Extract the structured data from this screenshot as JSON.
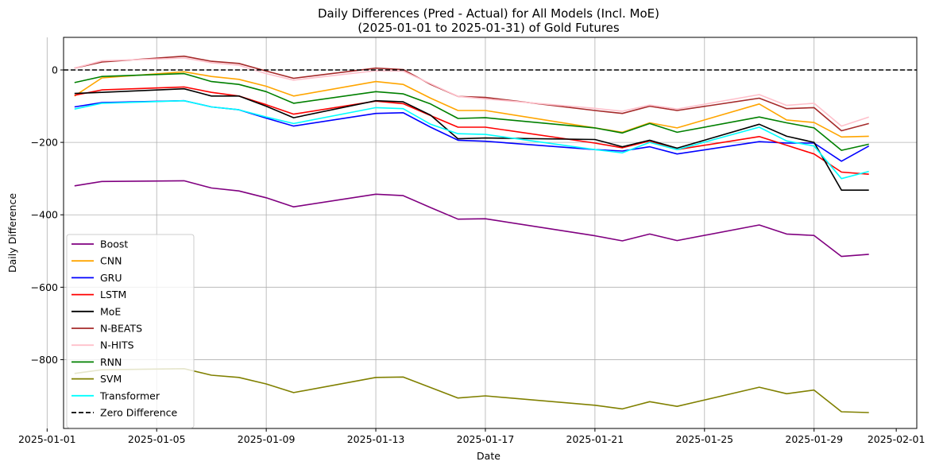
{
  "chart_data": {
    "type": "line",
    "title": "Daily Differences (Pred - Actual) for All Models (Incl. MoE)",
    "subtitle": "(2025-01-01 to 2025-01-31) of Gold Futures",
    "xlabel": "Date",
    "ylabel": "Daily Difference",
    "xlim": [
      "2025-01-01",
      "2025-02-01"
    ],
    "ylim": [
      -990,
      90
    ],
    "x_ticks": [
      "2025-01-01",
      "2025-01-05",
      "2025-01-09",
      "2025-01-13",
      "2025-01-17",
      "2025-01-21",
      "2025-01-25",
      "2025-01-29",
      "2025-02-01"
    ],
    "y_ticks": [
      0,
      -200,
      -400,
      -600,
      -800
    ],
    "grid": true,
    "legend_position": "lower-left",
    "x": [
      "2025-01-02",
      "2025-01-03",
      "2025-01-06",
      "2025-01-07",
      "2025-01-08",
      "2025-01-09",
      "2025-01-10",
      "2025-01-13",
      "2025-01-14",
      "2025-01-15",
      "2025-01-16",
      "2025-01-17",
      "2025-01-21",
      "2025-01-22",
      "2025-01-23",
      "2025-01-24",
      "2025-01-27",
      "2025-01-28",
      "2025-01-29",
      "2025-01-30",
      "2025-01-31"
    ],
    "series": [
      {
        "name": "Boost",
        "color": "#800080",
        "values": [
          -320,
          -308,
          -306,
          -326,
          -334,
          -353,
          -378,
          -343,
          -347,
          -380,
          -412,
          -411,
          -458,
          -472,
          -453,
          -471,
          -428,
          -453,
          -457,
          -515,
          -509
        ]
      },
      {
        "name": "CNN",
        "color": "#ffa500",
        "values": [
          -72,
          -22,
          -5,
          -18,
          -26,
          -45,
          -72,
          -32,
          -40,
          -78,
          -112,
          -112,
          -160,
          -172,
          -146,
          -160,
          -94,
          -138,
          -145,
          -185,
          -183
        ]
      },
      {
        "name": "GRU",
        "color": "#0000ff",
        "values": [
          -102,
          -90,
          -85,
          -102,
          -110,
          -133,
          -155,
          -120,
          -118,
          -158,
          -194,
          -197,
          -220,
          -224,
          -212,
          -232,
          -198,
          -202,
          -202,
          -252,
          -210
        ]
      },
      {
        "name": "LSTM",
        "color": "#ff0000",
        "values": [
          -70,
          -55,
          -47,
          -62,
          -72,
          -96,
          -122,
          -86,
          -93,
          -126,
          -158,
          -158,
          -202,
          -215,
          -196,
          -220,
          -184,
          -208,
          -232,
          -282,
          -288
        ]
      },
      {
        "name": "MoE",
        "color": "#000000",
        "values": [
          -65,
          -62,
          -52,
          -72,
          -72,
          -100,
          -132,
          -85,
          -88,
          -125,
          -190,
          -188,
          -192,
          -212,
          -194,
          -216,
          -150,
          -183,
          -200,
          -332,
          -332
        ]
      },
      {
        "name": "N-BEATS",
        "color": "#a52a2a",
        "values": [
          5,
          22,
          38,
          24,
          18,
          -3,
          -23,
          5,
          1,
          -40,
          -73,
          -76,
          -112,
          -120,
          -100,
          -112,
          -78,
          -107,
          -104,
          -168,
          -148
        ]
      },
      {
        "name": "N-HITS",
        "color": "#ffc0cb",
        "values": [
          5,
          25,
          33,
          20,
          13,
          -10,
          -28,
          -2,
          -3,
          -38,
          -73,
          -80,
          -106,
          -114,
          -97,
          -108,
          -68,
          -98,
          -92,
          -155,
          -130
        ]
      },
      {
        "name": "RNN",
        "color": "#008000",
        "values": [
          -35,
          -18,
          -10,
          -32,
          -40,
          -60,
          -92,
          -60,
          -66,
          -94,
          -134,
          -132,
          -160,
          -174,
          -148,
          -172,
          -130,
          -146,
          -160,
          -222,
          -205
        ]
      },
      {
        "name": "SVM",
        "color": "#808000",
        "values": [
          -838,
          -828,
          -825,
          -843,
          -849,
          -867,
          -891,
          -849,
          -848,
          -877,
          -906,
          -900,
          -926,
          -936,
          -916,
          -929,
          -876,
          -894,
          -884,
          -944,
          -946
        ]
      },
      {
        "name": "Transformer",
        "color": "#00ffff",
        "values": [
          -108,
          -92,
          -85,
          -102,
          -110,
          -130,
          -148,
          -104,
          -107,
          -150,
          -176,
          -178,
          -220,
          -229,
          -200,
          -220,
          -158,
          -196,
          -210,
          -300,
          -280
        ]
      },
      {
        "name": "Zero Difference",
        "color": "#000000",
        "dash": "dashed",
        "values": [
          0,
          0,
          0,
          0,
          0,
          0,
          0,
          0,
          0,
          0,
          0,
          0,
          0,
          0,
          0,
          0,
          0,
          0,
          0,
          0,
          0
        ]
      }
    ]
  }
}
